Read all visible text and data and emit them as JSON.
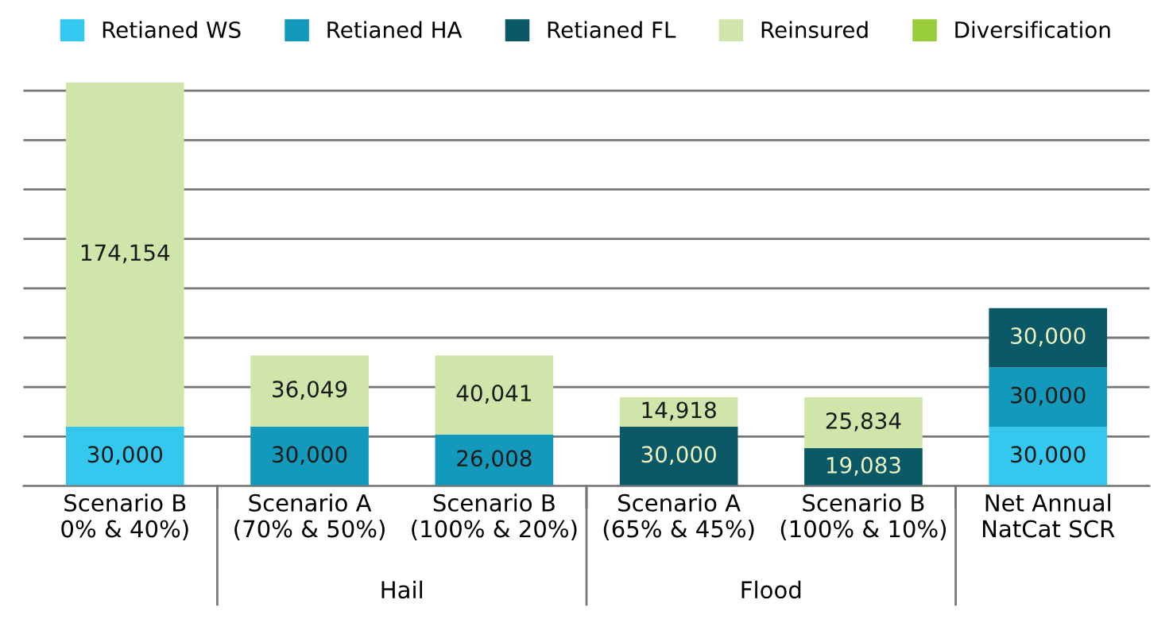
{
  "chart_data": {
    "type": "bar",
    "stacked": true,
    "categories": [
      "Scenario B\n0% & 40%)",
      "Scenario A\n(70% & 50%)",
      "Scenario B\n(100% & 20%)",
      "Scenario A\n(65% & 45%)",
      "Scenario B\n(100% & 10%)",
      "Net Annual\nNatCat SCR"
    ],
    "series": [
      {
        "name": "Retianed WS",
        "color": "#35c8ee",
        "values": [
          30000,
          null,
          null,
          null,
          null,
          30000
        ],
        "value_labels": [
          "30,000",
          null,
          null,
          null,
          null,
          "30,000"
        ]
      },
      {
        "name": "Retianed HA",
        "color": "#1399bc",
        "values": [
          null,
          30000,
          26008,
          null,
          null,
          30000
        ],
        "value_labels": [
          null,
          "30,000",
          "26,008",
          null,
          null,
          "30,000"
        ]
      },
      {
        "name": "Retianed FL",
        "color": "#0b5866",
        "values": [
          null,
          null,
          null,
          30000,
          19083,
          30000
        ],
        "value_labels": [
          null,
          null,
          null,
          "30,000",
          "19,083",
          "30,000"
        ]
      },
      {
        "name": "Reinsured",
        "color": "#cfe5aa",
        "values": [
          174154,
          36049,
          40041,
          14918,
          25834,
          null
        ],
        "value_labels": [
          "174,154",
          "36,049",
          "40,041",
          "14,918",
          "25,834",
          null
        ]
      },
      {
        "name": "Diversification",
        "color": "#9acd3c",
        "values": [
          null,
          null,
          null,
          null,
          null,
          null
        ]
      }
    ],
    "tick_labels": "x",
    "grid": "y",
    "legend": "top",
    "annotations": [
      "Hail",
      "Flood"
    ]
  }
}
